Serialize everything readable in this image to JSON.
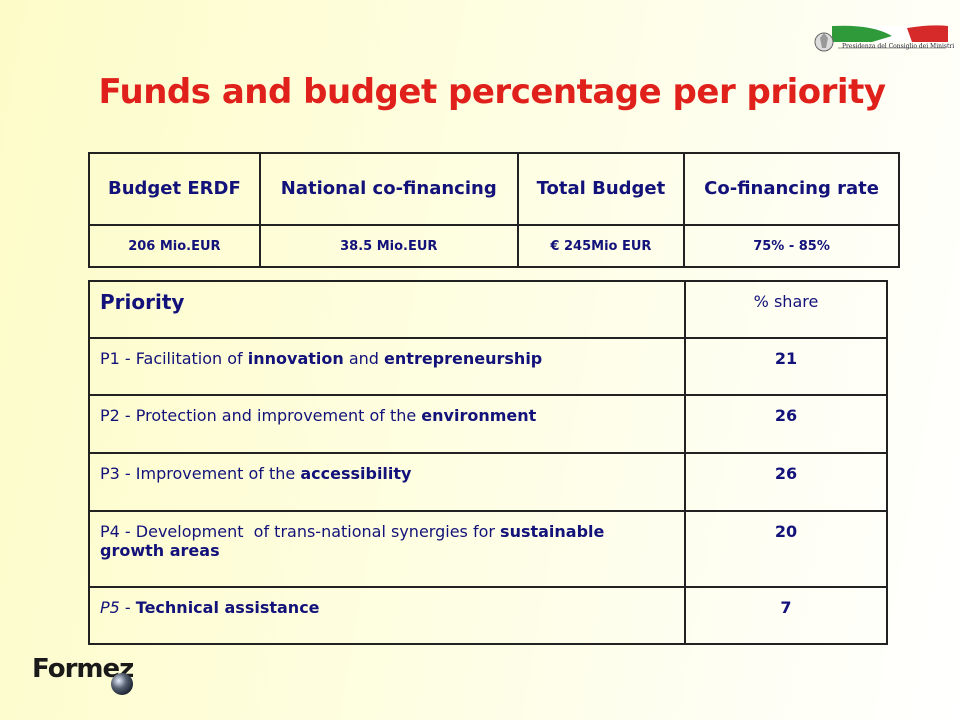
{
  "header": {
    "title": "Funds and budget percentage per priority",
    "logo_text": "Presidenza del Consiglio dei Ministri"
  },
  "budget_table": {
    "headers": [
      "Budget ERDF",
      "National co-financing",
      "Total Budget",
      "Co-financing rate"
    ],
    "rows": [
      [
        "206 Mio.EUR",
        "38.5 Mio.EUR",
        "€ 245Mio EUR",
        "75% - 85%"
      ]
    ]
  },
  "priority_table": {
    "headers": [
      "Priority",
      "% share"
    ],
    "rows": [
      {
        "priority": [
          {
            "text": "P1 - Facilitation of ",
            "bold": false
          },
          {
            "text": "innovation",
            "bold": true
          },
          {
            "text": " and ",
            "bold": false
          },
          {
            "text": "entrepreneurship",
            "bold": true
          }
        ],
        "share": 21
      },
      {
        "priority": [
          {
            "text": "P2 - Protection and improvement of the ",
            "bold": false
          },
          {
            "text": "environment",
            "bold": true
          }
        ],
        "share": 26
      },
      {
        "priority": [
          {
            "text": "P3 - Improvement of the ",
            "bold": false
          },
          {
            "text": "accessibility",
            "bold": true
          }
        ],
        "share": 26
      },
      {
        "priority": [
          {
            "text": "P4 - Development  of trans-national synergies for ",
            "bold": false
          },
          {
            "text": "sustainable growth areas",
            "bold": true
          }
        ],
        "share": 20
      },
      {
        "priority": [
          {
            "text": "P5",
            "bold": false,
            "italic": true
          },
          {
            "text": " - ",
            "bold": false
          },
          {
            "text": "Technical assistance",
            "bold": true
          }
        ],
        "share": 7
      }
    ]
  },
  "footer": {
    "logo_text": "Formez"
  }
}
